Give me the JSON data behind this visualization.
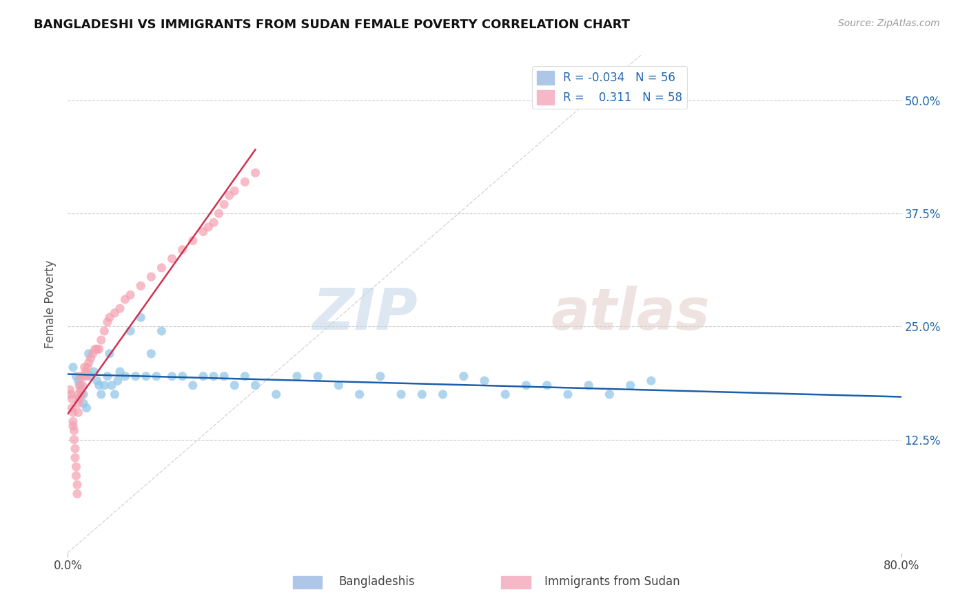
{
  "title": "BANGLADESHI VS IMMIGRANTS FROM SUDAN FEMALE POVERTY CORRELATION CHART",
  "source": "Source: ZipAtlas.com",
  "ylabel": "Female Poverty",
  "ytick_labels": [
    "12.5%",
    "25.0%",
    "37.5%",
    "50.0%"
  ],
  "ytick_values": [
    0.125,
    0.25,
    0.375,
    0.5
  ],
  "xlim": [
    0.0,
    0.8
  ],
  "ylim": [
    0.0,
    0.55
  ],
  "bangladeshi_color": "#8ec4e8",
  "sudan_color": "#f4a0b0",
  "trend_blue_color": "#1a5fa8",
  "trend_pink_color": "#d03050",
  "diag_color": "#cccccc",
  "bangladeshi_x": [
    0.005,
    0.008,
    0.01,
    0.012,
    0.015,
    0.015,
    0.018,
    0.02,
    0.022,
    0.025,
    0.028,
    0.03,
    0.032,
    0.035,
    0.038,
    0.04,
    0.042,
    0.045,
    0.048,
    0.05,
    0.055,
    0.06,
    0.065,
    0.07,
    0.075,
    0.08,
    0.085,
    0.09,
    0.1,
    0.11,
    0.12,
    0.13,
    0.14,
    0.15,
    0.16,
    0.17,
    0.18,
    0.2,
    0.22,
    0.24,
    0.26,
    0.28,
    0.3,
    0.32,
    0.34,
    0.36,
    0.38,
    0.4,
    0.42,
    0.44,
    0.46,
    0.48,
    0.5,
    0.52,
    0.54,
    0.56
  ],
  "bangladeshi_y": [
    0.205,
    0.195,
    0.19,
    0.185,
    0.175,
    0.165,
    0.16,
    0.22,
    0.195,
    0.2,
    0.19,
    0.185,
    0.175,
    0.185,
    0.195,
    0.22,
    0.185,
    0.175,
    0.19,
    0.2,
    0.195,
    0.245,
    0.195,
    0.26,
    0.195,
    0.22,
    0.195,
    0.245,
    0.195,
    0.195,
    0.185,
    0.195,
    0.195,
    0.195,
    0.185,
    0.195,
    0.185,
    0.175,
    0.195,
    0.195,
    0.185,
    0.175,
    0.195,
    0.175,
    0.175,
    0.175,
    0.195,
    0.19,
    0.175,
    0.185,
    0.185,
    0.175,
    0.185,
    0.175,
    0.185,
    0.19
  ],
  "sudan_x": [
    0.002,
    0.003,
    0.004,
    0.004,
    0.005,
    0.005,
    0.005,
    0.006,
    0.006,
    0.007,
    0.007,
    0.008,
    0.008,
    0.009,
    0.009,
    0.01,
    0.01,
    0.01,
    0.011,
    0.011,
    0.012,
    0.012,
    0.013,
    0.014,
    0.015,
    0.016,
    0.017,
    0.018,
    0.019,
    0.02,
    0.022,
    0.024,
    0.026,
    0.028,
    0.03,
    0.032,
    0.035,
    0.038,
    0.04,
    0.045,
    0.05,
    0.055,
    0.06,
    0.07,
    0.08,
    0.09,
    0.1,
    0.11,
    0.12,
    0.13,
    0.135,
    0.14,
    0.145,
    0.15,
    0.155,
    0.16,
    0.17,
    0.18
  ],
  "sudan_y": [
    0.18,
    0.175,
    0.17,
    0.16,
    0.155,
    0.145,
    0.14,
    0.135,
    0.125,
    0.115,
    0.105,
    0.095,
    0.085,
    0.075,
    0.065,
    0.175,
    0.165,
    0.155,
    0.185,
    0.17,
    0.195,
    0.18,
    0.175,
    0.185,
    0.195,
    0.205,
    0.2,
    0.195,
    0.205,
    0.21,
    0.215,
    0.22,
    0.225,
    0.225,
    0.225,
    0.235,
    0.245,
    0.255,
    0.26,
    0.265,
    0.27,
    0.28,
    0.285,
    0.295,
    0.305,
    0.315,
    0.325,
    0.335,
    0.345,
    0.355,
    0.36,
    0.365,
    0.375,
    0.385,
    0.395,
    0.4,
    0.41,
    0.42
  ]
}
